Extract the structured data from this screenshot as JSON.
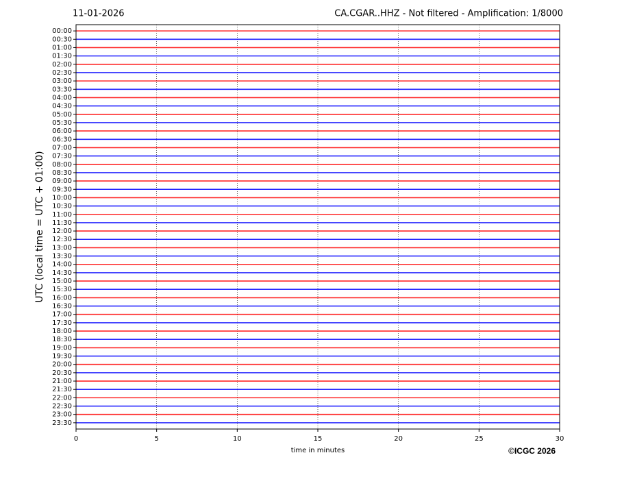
{
  "chart_data": {
    "type": "helicorder",
    "title_left": "11-01-2026",
    "title": "CA.CGAR..HHZ - Not filtered - Amplification: 1/8000",
    "x_label": "time in minutes",
    "y_label": "UTC (local time = UTC + 01:00)",
    "footer": "©ICGC 2026",
    "categories": [
      "00:00",
      "00:30",
      "01:00",
      "01:30",
      "02:00",
      "02:30",
      "03:00",
      "03:30",
      "04:00",
      "04:30",
      "05:00",
      "05:30",
      "06:00",
      "06:30",
      "07:00",
      "07:30",
      "08:00",
      "08:30",
      "09:00",
      "09:30",
      "10:00",
      "10:30",
      "11:00",
      "11:30",
      "12:00",
      "12:30",
      "13:00",
      "13:30",
      "14:00",
      "14:30",
      "15:00",
      "15:30",
      "16:00",
      "16:30",
      "17:00",
      "17:30",
      "18:00",
      "18:30",
      "19:00",
      "19:30",
      "20:00",
      "20:30",
      "21:00",
      "21:30",
      "22:00",
      "22:30",
      "23:00",
      "23:30"
    ],
    "colors": [
      "#ff0000",
      "#0000ff"
    ],
    "xlim": [
      0,
      30
    ],
    "xticks": [
      0,
      5,
      10,
      15,
      20,
      25,
      30
    ],
    "grid": true
  }
}
